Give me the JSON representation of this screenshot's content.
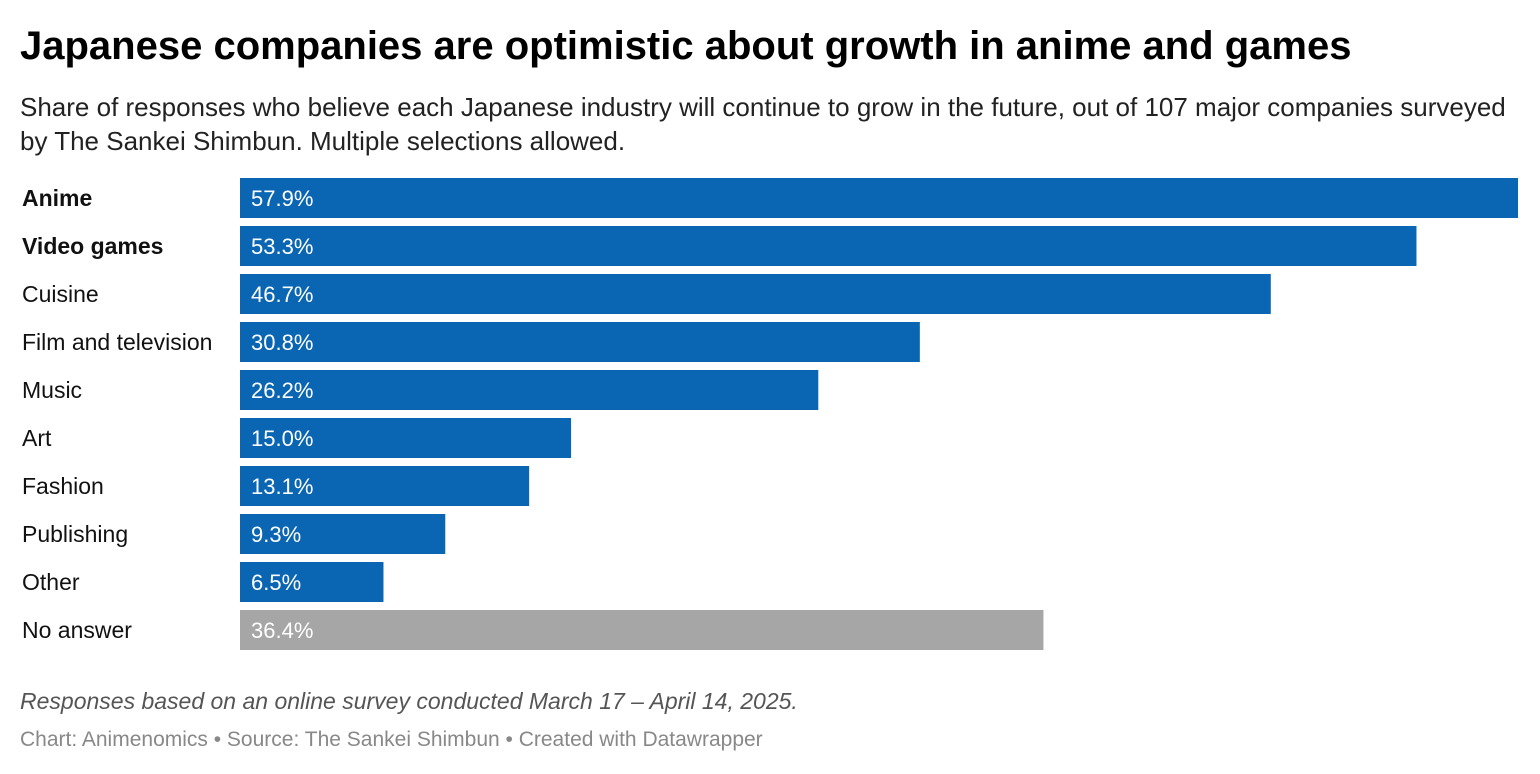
{
  "header": {
    "title": "Japanese companies are optimistic about growth in anime and games",
    "subtitle": "Share of responses who believe each Japanese industry will continue to grow in the future, out of 107 major companies surveyed by The Sankei Shimbun. Multiple selections allowed."
  },
  "chart_data": {
    "type": "bar",
    "orientation": "horizontal",
    "categories": [
      "Anime",
      "Video games",
      "Cuisine",
      "Film and television",
      "Music",
      "Art",
      "Fashion",
      "Publishing",
      "Other",
      "No answer"
    ],
    "values": [
      57.9,
      53.3,
      46.7,
      30.8,
      26.2,
      15.0,
      13.1,
      9.3,
      6.5,
      36.4
    ],
    "value_labels": [
      "57.9%",
      "53.3%",
      "46.7%",
      "30.8%",
      "26.2%",
      "15.0%",
      "13.1%",
      "9.3%",
      "6.5%",
      "36.4%"
    ],
    "bold_categories": [
      "Anime",
      "Video games"
    ],
    "bar_colors": [
      "#0a66b2",
      "#0a66b2",
      "#0a66b2",
      "#0a66b2",
      "#0a66b2",
      "#0a66b2",
      "#0a66b2",
      "#0a66b2",
      "#0a66b2",
      "#a6a6a6"
    ],
    "xlim": [
      0,
      57.9
    ],
    "grid": false,
    "legend": "none"
  },
  "notes": {
    "survey_note": "Responses based on an online survey conducted March 17 – April 14, 2025.",
    "credits": "Chart: Animenomics • Source: The Sankei Shimbun • Created with Datawrapper"
  }
}
